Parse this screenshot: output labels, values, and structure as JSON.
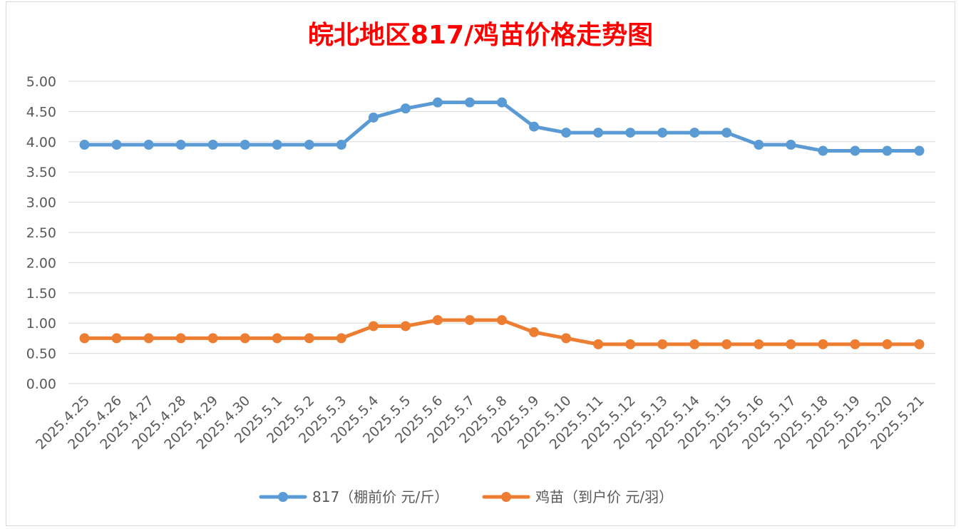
{
  "chart_data": {
    "type": "line",
    "title": "皖北地区817/鸡苗价格走势图",
    "title_color": "#ff0000",
    "categories": [
      "2025.4.25",
      "2025.4.26",
      "2025.4.27",
      "2025.4.28",
      "2025.4.29",
      "2025.4.30",
      "2025.5.1",
      "2025.5.2",
      "2025.5.3",
      "2025.5.4",
      "2025.5.5",
      "2025.5.6",
      "2025.5.7",
      "2025.5.8",
      "2025.5.9",
      "2025.5.10",
      "2025.5.11",
      "2025.5.12",
      "2025.5.13",
      "2025.5.14",
      "2025.5.15",
      "2025.5.16",
      "2025.5.17",
      "2025.5.18",
      "2025.5.19",
      "2025.5.20",
      "2025.5.21"
    ],
    "y_ticks": [
      "0.00",
      "0.50",
      "1.00",
      "1.50",
      "2.00",
      "2.50",
      "3.00",
      "3.50",
      "4.00",
      "4.50",
      "5.00"
    ],
    "ylim": [
      0,
      5
    ],
    "grid": true,
    "legend_position": "bottom",
    "series": [
      {
        "name": "817（棚前价 元/斤）",
        "color": "#5b9bd5",
        "values": [
          3.95,
          3.95,
          3.95,
          3.95,
          3.95,
          3.95,
          3.95,
          3.95,
          3.95,
          4.4,
          4.55,
          4.65,
          4.65,
          4.65,
          4.25,
          4.15,
          4.15,
          4.15,
          4.15,
          4.15,
          4.15,
          3.95,
          3.95,
          3.85,
          3.85,
          3.85,
          3.85
        ]
      },
      {
        "name": "鸡苗（到户价 元/羽）",
        "color": "#ed7d31",
        "values": [
          0.75,
          0.75,
          0.75,
          0.75,
          0.75,
          0.75,
          0.75,
          0.75,
          0.75,
          0.95,
          0.95,
          1.05,
          1.05,
          1.05,
          0.85,
          0.75,
          0.65,
          0.65,
          0.65,
          0.65,
          0.65,
          0.65,
          0.65,
          0.65,
          0.65,
          0.65,
          0.65
        ]
      }
    ]
  }
}
